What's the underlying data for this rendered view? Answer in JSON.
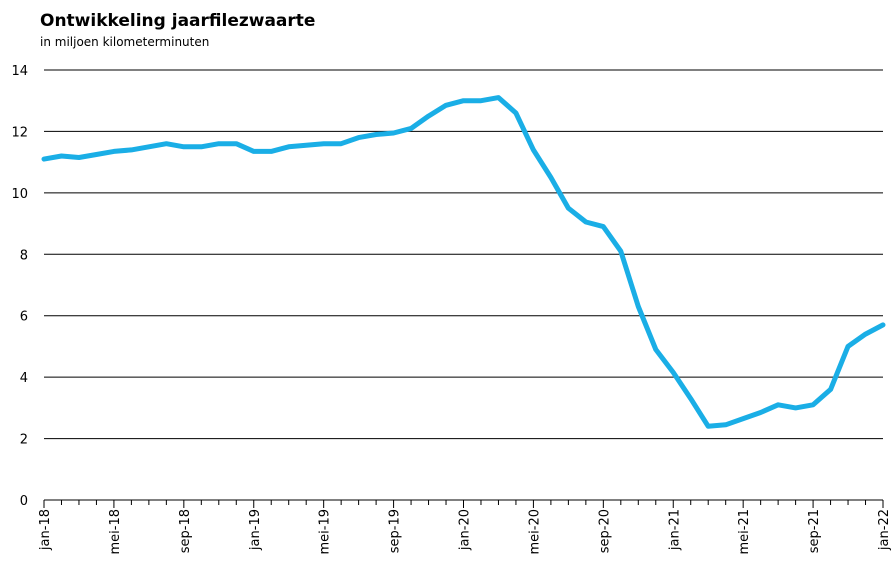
{
  "chart_data": {
    "type": "line",
    "title": "Ontwikkeling jaarfilezwaarte",
    "subtitle": "in miljoen kilometerminuten",
    "categories": [
      "jan-18",
      null,
      null,
      null,
      "mei-18",
      null,
      null,
      null,
      "sep-18",
      null,
      null,
      null,
      "jan-19",
      null,
      null,
      null,
      "mei-19",
      null,
      null,
      null,
      "sep-19",
      null,
      null,
      null,
      "jan-20",
      null,
      null,
      null,
      "mei-20",
      null,
      null,
      null,
      "sep-20",
      null,
      null,
      null,
      "jan-21",
      null,
      null,
      null,
      "mei-21",
      null,
      null,
      null,
      "sep-21",
      null,
      null,
      null,
      "jan-22"
    ],
    "series": [
      {
        "name": "Jaarfilezwaarte",
        "color": "#1aaee6",
        "values": [
          11.1,
          11.2,
          11.15,
          11.25,
          11.35,
          11.4,
          11.5,
          11.6,
          11.5,
          11.5,
          11.6,
          11.6,
          11.35,
          11.35,
          11.5,
          11.55,
          11.6,
          11.6,
          11.8,
          11.9,
          11.95,
          12.1,
          12.5,
          12.85,
          13.0,
          13.0,
          13.1,
          12.6,
          11.4,
          10.5,
          9.5,
          9.05,
          8.9,
          8.1,
          6.3,
          4.9,
          4.15,
          3.3,
          2.4,
          2.45,
          2.65,
          2.85,
          3.1,
          3.0,
          3.1,
          3.6,
          5.0,
          5.4,
          5.7
        ]
      }
    ],
    "ylim": [
      0,
      14
    ],
    "yticks": [
      0,
      2,
      4,
      6,
      8,
      10,
      12,
      14
    ],
    "grid": true
  }
}
